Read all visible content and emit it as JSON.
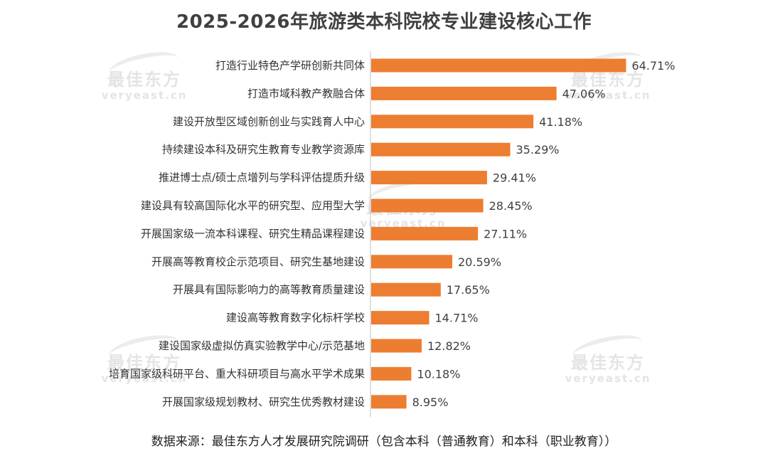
{
  "title": "2025-2026年旅游类本科院校专业建设核心工作",
  "source": "数据来源：最佳东方人才发展研究院调研（包含本科（普通教育）和本科（职业教育））",
  "watermark": {
    "cn": "最佳东方",
    "en": "veryeast.cn"
  },
  "chart_data": {
    "type": "bar",
    "orientation": "horizontal",
    "title": "2025-2026年旅游类本科院校专业建设核心工作",
    "xlabel": "",
    "ylabel": "",
    "xlim": [
      0,
      65
    ],
    "grid": false,
    "legend": "none",
    "bar_color": "#ED7D31",
    "categories": [
      "打造行业特色产学研创新共同体",
      "打造市域科教产教融合体",
      "建设开放型区域创新创业与实践育人中心",
      "持续建设本科及研究生教育专业教学资源库",
      "推进博士点/硕士点增列与学科评估提质升级",
      "建设具有较高国际化水平的研究型、应用型大学",
      "开展国家级一流本科课程、研究生精品课程建设",
      "开展高等教育校企示范项目、研究生基地建设",
      "开展具有国际影响力的高等教育质量建设",
      "建设高等教育数字化标杆学校",
      "建设国家级虚拟仿真实验教学中心/示范基地",
      "培育国家级科研平台、重大科研项目与高水平学术成果",
      "开展国家级规划教材、研究生优秀教材建设"
    ],
    "values": [
      64.71,
      47.06,
      41.18,
      35.29,
      29.41,
      28.45,
      27.11,
      20.59,
      17.65,
      14.71,
      12.82,
      10.18,
      8.95
    ],
    "value_labels": [
      "64.71%",
      "47.06%",
      "41.18%",
      "35.29%",
      "29.41%",
      "28.45%",
      "27.11%",
      "20.59%",
      "17.65%",
      "14.71%",
      "12.82%",
      "10.18%",
      "8.95%"
    ]
  }
}
